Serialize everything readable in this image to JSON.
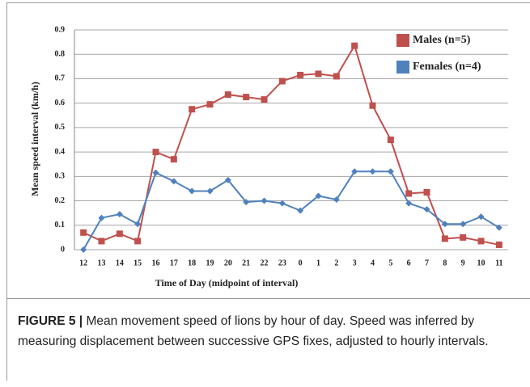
{
  "chart_data": {
    "type": "line",
    "xlabel": "Time of Day (midpoint of interval)",
    "ylabel": "Mean speed interval (km/h)",
    "categories": [
      "12",
      "13",
      "14",
      "15",
      "16",
      "17",
      "18",
      "19",
      "20",
      "21",
      "22",
      "23",
      "0",
      "1",
      "2",
      "3",
      "4",
      "5",
      "6",
      "7",
      "8",
      "9",
      "10",
      "11"
    ],
    "series": [
      {
        "name": "Males (n=5)",
        "color": "#c0504d",
        "marker": "square",
        "values": [
          0.07,
          0.035,
          0.065,
          0.035,
          0.4,
          0.37,
          0.575,
          0.595,
          0.635,
          0.625,
          0.615,
          0.69,
          0.715,
          0.72,
          0.71,
          0.835,
          0.59,
          0.45,
          0.23,
          0.235,
          0.045,
          0.05,
          0.035,
          0.02
        ]
      },
      {
        "name": "Females (n=4)",
        "color": "#4f81bd",
        "marker": "diamond",
        "values": [
          0,
          0.13,
          0.145,
          0.105,
          0.315,
          0.28,
          0.24,
          0.24,
          0.285,
          0.195,
          0.2,
          0.19,
          0.16,
          0.22,
          0.205,
          0.32,
          0.32,
          0.32,
          0.19,
          0.165,
          0.105,
          0.105,
          0.135,
          0.09
        ]
      }
    ],
    "ylim": [
      0,
      0.9
    ],
    "yticks": [
      0,
      0.1,
      0.2,
      0.3,
      0.4,
      0.5,
      0.6,
      0.7,
      0.8,
      0.9
    ],
    "grid": true,
    "legend": "top-right"
  },
  "caption": {
    "label": "FIGURE 5 |",
    "text": " Mean movement speed of lions by hour of day. Speed was inferred by measuring displacement between successive GPS fixes, adjusted to hourly intervals."
  }
}
